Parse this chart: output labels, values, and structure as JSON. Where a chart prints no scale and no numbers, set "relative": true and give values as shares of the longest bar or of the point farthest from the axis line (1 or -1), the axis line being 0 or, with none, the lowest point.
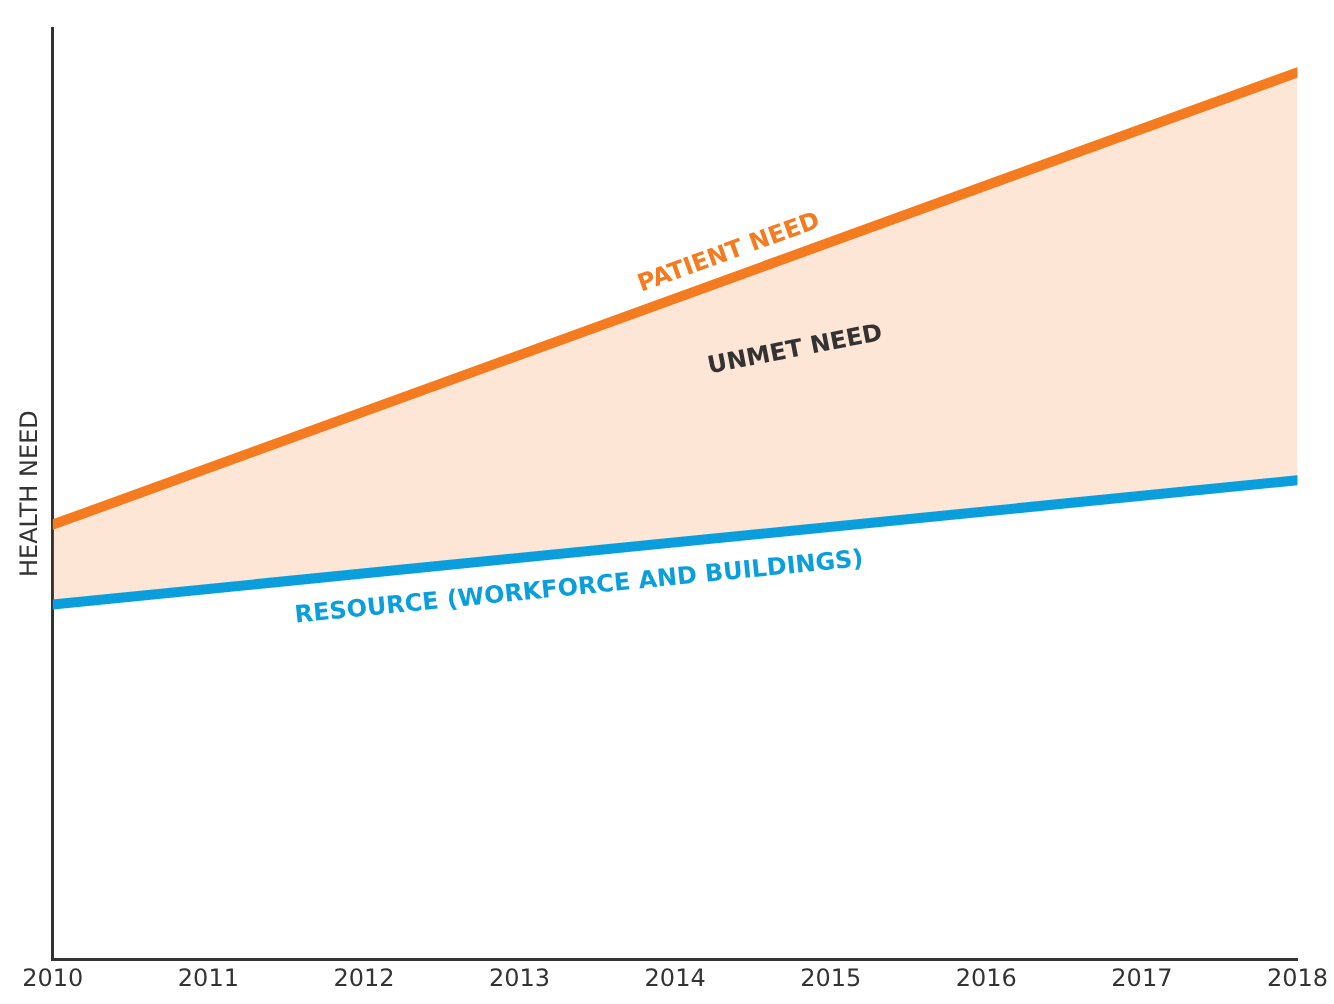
{
  "chart_data": {
    "type": "line",
    "relative": true,
    "ylabel": "HEALTH NEED",
    "x": [
      2010,
      2018
    ],
    "xlim": [
      2010,
      2018
    ],
    "xticks": [
      2010,
      2011,
      2012,
      2013,
      2014,
      2015,
      2016,
      2017,
      2018
    ],
    "tick_labels": "x",
    "grid": false,
    "legend": false,
    "marker": "none",
    "line_style": "solid",
    "series": [
      {
        "name": "PATIENT NEED",
        "color": "#f47b20",
        "values": [
          0.49,
          1
        ],
        "lower": [
          0.4,
          0.54
        ],
        "upper": [
          0.49,
          1
        ]
      },
      {
        "name": "RESOURCE (WORKFORCE AND BUILDINGS)",
        "color": "#0a9fdc",
        "values": [
          0.4,
          0.54
        ]
      }
    ],
    "annotations": [
      "UNMET NEED"
    ]
  }
}
